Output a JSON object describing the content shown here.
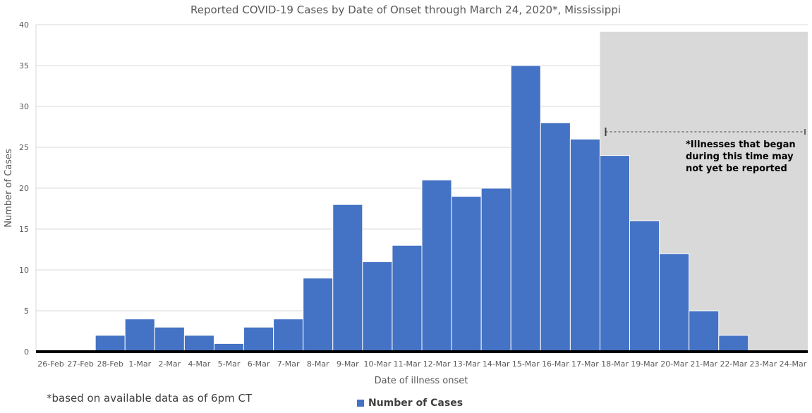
{
  "chart_data": {
    "type": "bar",
    "title": "Reported COVID-19 Cases by Date of Onset through March 24, 2020*, Mississippi",
    "xlabel": "Date of illness onset",
    "ylabel": "Number of Cases",
    "ylim": [
      0,
      40
    ],
    "yticks": [
      0,
      5,
      10,
      15,
      20,
      25,
      30,
      35,
      40
    ],
    "grid": true,
    "legend_position": "bottom",
    "categories": [
      "26-Feb",
      "27-Feb",
      "28-Feb",
      "1-Mar",
      "2-Mar",
      "4-Mar",
      "5-Mar",
      "6-Mar",
      "7-Mar",
      "8-Mar",
      "9-Mar",
      "10-Mar",
      "11-Mar",
      "12-Mar",
      "13-Mar",
      "14-Mar",
      "15-Mar",
      "16-Mar",
      "17-Mar",
      "18-Mar",
      "19-Mar",
      "20-Mar",
      "21-Mar",
      "22-Mar",
      "23-Mar",
      "24-Mar"
    ],
    "series": [
      {
        "name": "Number of Cases",
        "values": [
          0,
          0,
          2,
          4,
          3,
          2,
          1,
          3,
          4,
          9,
          18,
          11,
          13,
          21,
          19,
          20,
          35,
          28,
          26,
          24,
          16,
          12,
          5,
          2,
          0,
          0
        ]
      }
    ],
    "shaded_region": {
      "from": "18-Mar",
      "to": "24-Mar",
      "annotation": [
        "*Illnesses that began",
        "during this time may",
        "not yet be reported"
      ]
    },
    "footnote": "*based on available data as of 6pm CT"
  },
  "colors": {
    "bar": "#4472c4",
    "shade": "#d9d9d9",
    "grid": "#d9d9d9",
    "axis": "#000000",
    "text": "#595959"
  }
}
